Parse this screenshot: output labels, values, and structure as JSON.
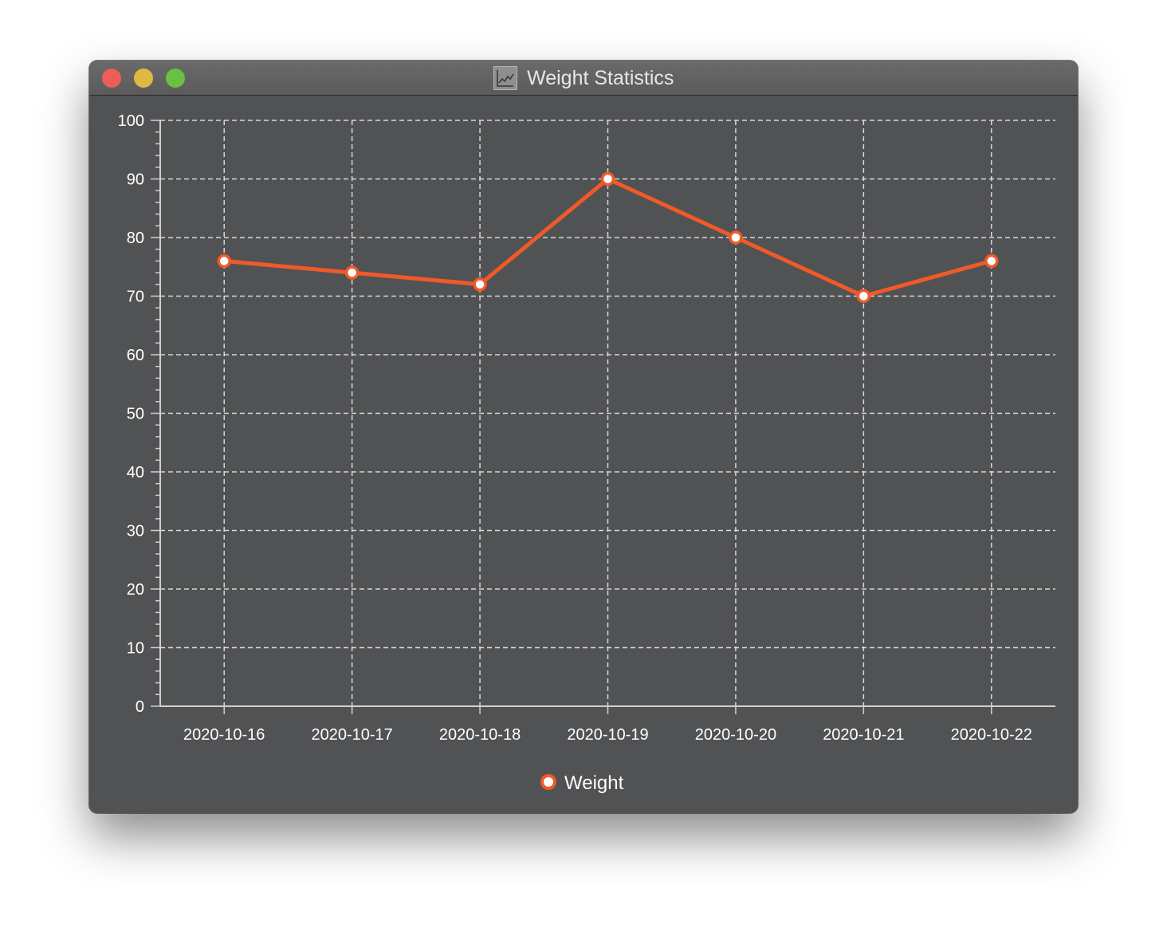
{
  "window": {
    "title": "Weight Statistics",
    "icon": "chart-icon"
  },
  "colors": {
    "series": "#f05a28",
    "background": "#515254",
    "grid": "#d8d8d8"
  },
  "chart_data": {
    "type": "line",
    "title": "",
    "xlabel": "",
    "ylabel": "",
    "categories": [
      "2020-10-16",
      "2020-10-17",
      "2020-10-18",
      "2020-10-19",
      "2020-10-20",
      "2020-10-21",
      "2020-10-22"
    ],
    "series": [
      {
        "name": "Weight",
        "values": [
          76,
          74,
          72,
          90,
          80,
          70,
          76
        ]
      }
    ],
    "ylim": [
      0,
      100
    ],
    "yticks": [
      0,
      10,
      20,
      30,
      40,
      50,
      60,
      70,
      80,
      90,
      100
    ],
    "grid": true,
    "markers": true,
    "legend": "bottom-center"
  }
}
